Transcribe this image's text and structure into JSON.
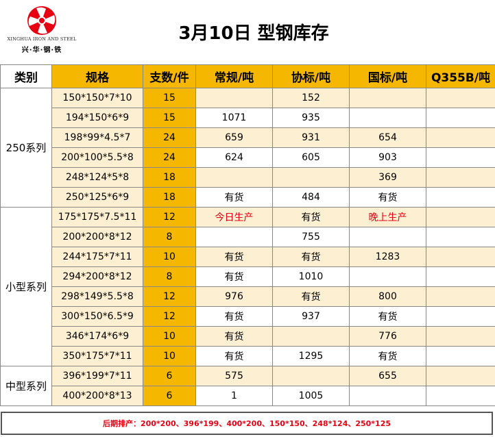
{
  "logo": {
    "en": "XINGHUA IRON AND STEEL",
    "cn": "兴·华·钢·铁",
    "accent": "#e60012"
  },
  "title": "3月10日 型钢库存",
  "columns": [
    "类别",
    "规格",
    "支数/件",
    "常规/吨",
    "协标/吨",
    "国标/吨",
    "Q355B/吨"
  ],
  "groups": [
    {
      "name": "250系列",
      "rows": [
        {
          "spec": "150*150*7*10",
          "count": "15",
          "regular": "",
          "xie": "152",
          "guo": "",
          "q355b": ""
        },
        {
          "spec": "194*150*6*9",
          "count": "15",
          "regular": "1071",
          "xie": "935",
          "guo": "",
          "q355b": ""
        },
        {
          "spec": "198*99*4.5*7",
          "count": "24",
          "regular": "659",
          "xie": "931",
          "guo": "654",
          "q355b": ""
        },
        {
          "spec": "200*100*5.5*8",
          "count": "24",
          "regular": "624",
          "xie": "605",
          "guo": "903",
          "q355b": ""
        },
        {
          "spec": "248*124*5*8",
          "count": "18",
          "regular": "",
          "xie": "",
          "guo": "369",
          "q355b": ""
        },
        {
          "spec": "250*125*6*9",
          "count": "18",
          "regular": "有货",
          "xie": "484",
          "guo": "有货",
          "q355b": ""
        }
      ]
    },
    {
      "name": "小型系列",
      "rows": [
        {
          "spec": "175*175*7.5*11",
          "count": "12",
          "regular": "今日生产",
          "xie": "有货",
          "guo": "晚上生产",
          "q355b": ""
        },
        {
          "spec": "200*200*8*12",
          "count": "8",
          "regular": "",
          "xie": "755",
          "guo": "",
          "q355b": ""
        },
        {
          "spec": "244*175*7*11",
          "count": "10",
          "regular": "有货",
          "xie": "有货",
          "guo": "1283",
          "q355b": ""
        },
        {
          "spec": "294*200*8*12",
          "count": "8",
          "regular": "有货",
          "xie": "1010",
          "guo": "",
          "q355b": ""
        },
        {
          "spec": "298*149*5.5*8",
          "count": "12",
          "regular": "976",
          "xie": "有货",
          "guo": "800",
          "q355b": ""
        },
        {
          "spec": "300*150*6.5*9",
          "count": "12",
          "regular": "有货",
          "xie": "937",
          "guo": "有货",
          "q355b": ""
        },
        {
          "spec": "346*174*6*9",
          "count": "10",
          "regular": "有货",
          "xie": "",
          "guo": "776",
          "q355b": ""
        },
        {
          "spec": "350*175*7*11",
          "count": "10",
          "regular": "有货",
          "xie": "1295",
          "guo": "有货",
          "q355b": ""
        }
      ]
    },
    {
      "name": "中型系列",
      "rows": [
        {
          "spec": "396*199*7*11",
          "count": "6",
          "regular": "575",
          "xie": "",
          "guo": "655",
          "q355b": ""
        },
        {
          "spec": "400*200*8*13",
          "count": "6",
          "regular": "1",
          "xie": "1005",
          "guo": "",
          "q355b": ""
        }
      ]
    }
  ],
  "footer": "后期排产：200*200、396*199、400*200、150*150、248*124、250*125"
}
